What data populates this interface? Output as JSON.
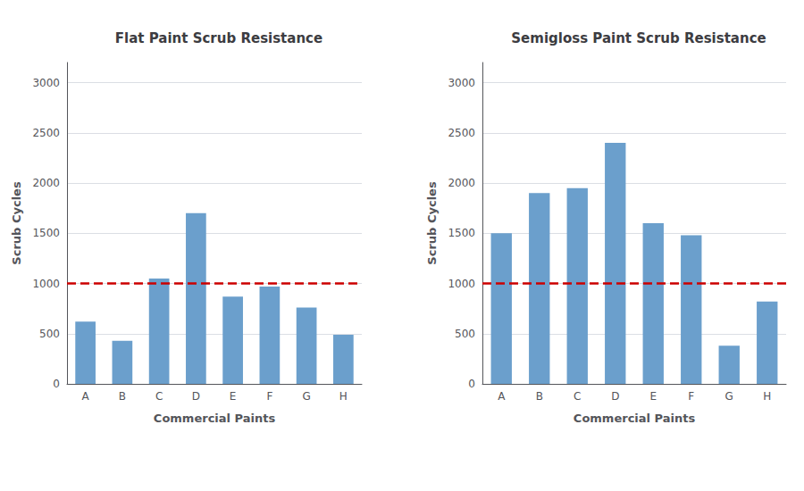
{
  "chart_data": [
    {
      "type": "bar",
      "title": "Flat Paint Scrub Resistance",
      "xlabel": "Commercial Paints",
      "ylabel": "Scrub Cycles",
      "categories": [
        "A",
        "B",
        "C",
        "D",
        "E",
        "F",
        "G",
        "H"
      ],
      "values": [
        620,
        430,
        1050,
        1700,
        870,
        970,
        760,
        490
      ],
      "color": "#6B9FCC",
      "reference_line": {
        "value": 1000,
        "color": "#CC0000",
        "line_style": "dashed"
      },
      "ylim": [
        0,
        3200
      ],
      "yticks": [
        0,
        500,
        1000,
        1500,
        2000,
        2500,
        3000
      ],
      "grid": true
    },
    {
      "type": "bar",
      "title": "Semigloss Paint Scrub Resistance",
      "xlabel": "Commercial Paints",
      "ylabel": "Scrub Cycles",
      "categories": [
        "A",
        "B",
        "C",
        "D",
        "E",
        "F",
        "G",
        "H"
      ],
      "values": [
        1500,
        1900,
        1950,
        2400,
        1600,
        1480,
        380,
        820
      ],
      "color": "#6B9FCC",
      "reference_line": {
        "value": 1000,
        "color": "#CC0000",
        "line_style": "dashed"
      },
      "ylim": [
        0,
        3200
      ],
      "yticks": [
        0,
        500,
        1000,
        1500,
        2000,
        2500,
        3000
      ],
      "grid": true
    }
  ]
}
